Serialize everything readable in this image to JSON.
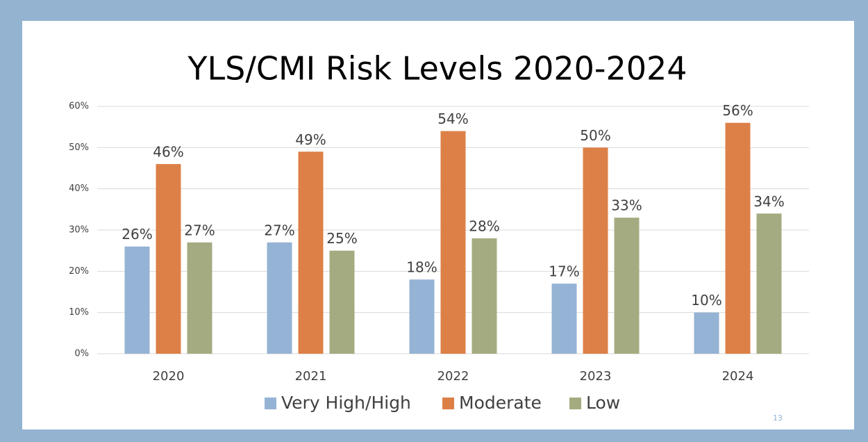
{
  "chart_data": {
    "type": "bar",
    "title": "YLS/CMI Risk Levels 2020-2024",
    "categories": [
      "2020",
      "2021",
      "2022",
      "2023",
      "2024"
    ],
    "series": [
      {
        "name": "Very High/High",
        "color": "#95b3d4",
        "values": [
          26,
          27,
          18,
          17,
          10
        ],
        "value_labels": [
          "26%",
          "27%",
          "18%",
          "17%",
          "10%"
        ]
      },
      {
        "name": "Moderate",
        "color": "#dd8047",
        "values": [
          46,
          49,
          54,
          50,
          56
        ],
        "value_labels": [
          "46%",
          "49%",
          "54%",
          "50%",
          "56%"
        ]
      },
      {
        "name": "Low",
        "color": "#a5ab81",
        "values": [
          27,
          25,
          28,
          33,
          34
        ],
        "value_labels": [
          "27%",
          "25%",
          "28%",
          "33%",
          "34%"
        ]
      }
    ],
    "ylim": [
      0,
      60
    ],
    "yticks": [
      {
        "value": 0,
        "label": "0%"
      },
      {
        "value": 10,
        "label": "10%"
      },
      {
        "value": 20,
        "label": "20%"
      },
      {
        "value": 30,
        "label": "30%"
      },
      {
        "value": 40,
        "label": "40%"
      },
      {
        "value": 50,
        "label": "50%"
      },
      {
        "value": 60,
        "label": "60%"
      }
    ],
    "grid": true,
    "legend": "bottom"
  },
  "slide": {
    "page_number": "13"
  }
}
